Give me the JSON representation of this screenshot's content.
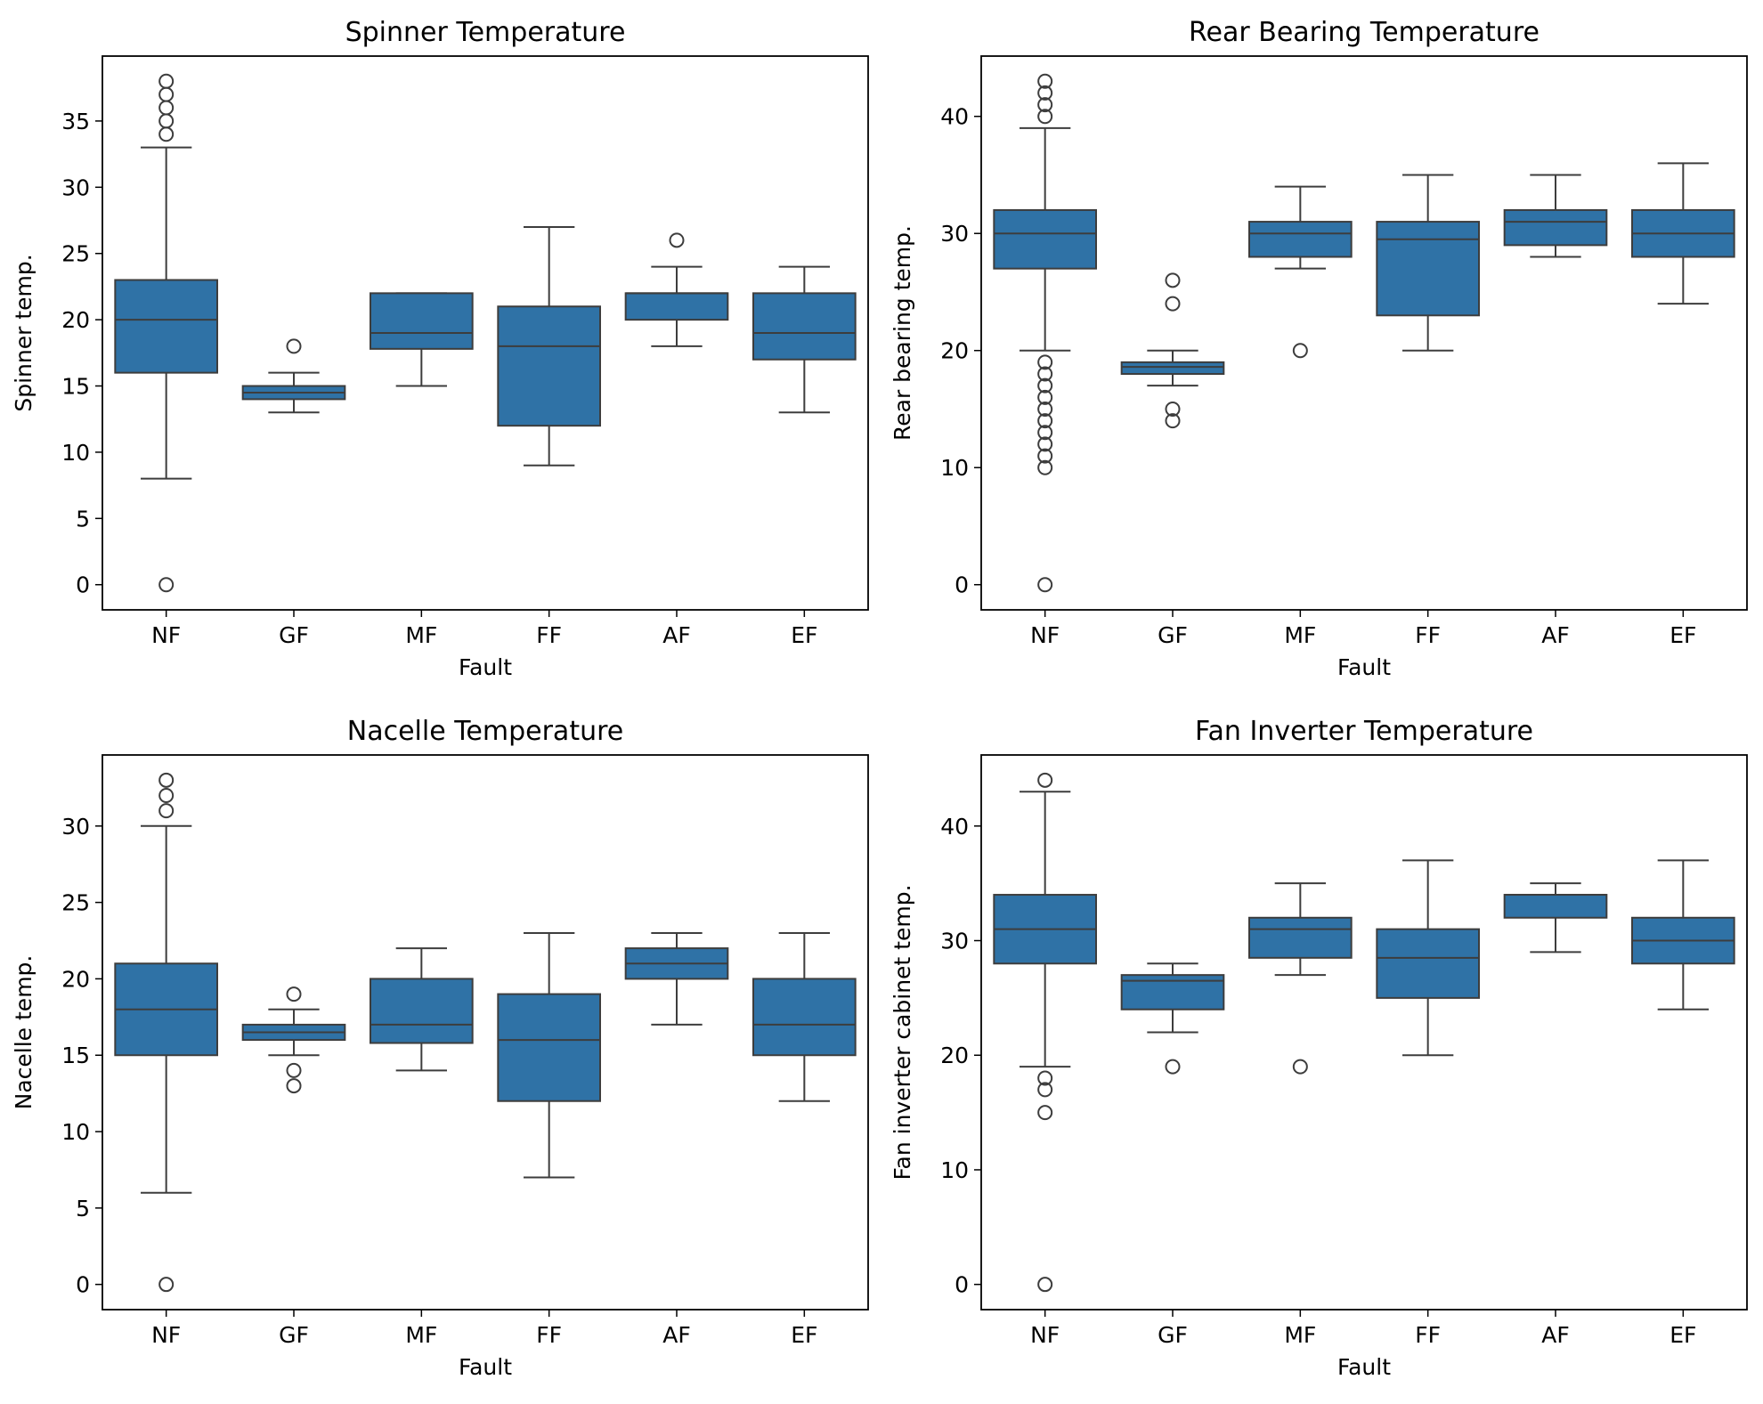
{
  "chart_data": [
    {
      "type": "box",
      "title": "Spinner Temperature",
      "xlabel": "Fault",
      "ylabel": "Spinner temp.",
      "categories": [
        "NF",
        "GF",
        "MF",
        "FF",
        "AF",
        "EF"
      ],
      "yticks": [
        0,
        5,
        10,
        15,
        20,
        25,
        30,
        35
      ],
      "ylim": [
        -1.9,
        39.9
      ],
      "color": "#2f72a6",
      "boxes": [
        {
          "category": "NF",
          "whislo": 8,
          "q1": 16,
          "med": 20,
          "q3": 23,
          "whishi": 33,
          "fliers": [
            0,
            34,
            35,
            36,
            37,
            38
          ]
        },
        {
          "category": "GF",
          "whislo": 13,
          "q1": 14,
          "med": 14.5,
          "q3": 15,
          "whishi": 16,
          "fliers": [
            18
          ]
        },
        {
          "category": "MF",
          "whislo": 15,
          "q1": 17.8,
          "med": 19,
          "q3": 22,
          "whishi": 22,
          "fliers": []
        },
        {
          "category": "FF",
          "whislo": 9,
          "q1": 12,
          "med": 18,
          "q3": 21,
          "whishi": 27,
          "fliers": []
        },
        {
          "category": "AF",
          "whislo": 18,
          "q1": 20,
          "med": 22,
          "q3": 22,
          "whishi": 24,
          "fliers": [
            26
          ]
        },
        {
          "category": "EF",
          "whislo": 13,
          "q1": 17,
          "med": 19,
          "q3": 22,
          "whishi": 24,
          "fliers": []
        }
      ]
    },
    {
      "type": "box",
      "title": "Rear Bearing Temperature",
      "xlabel": "Fault",
      "ylabel": "Rear bearing temp.",
      "categories": [
        "NF",
        "GF",
        "MF",
        "FF",
        "AF",
        "EF"
      ],
      "yticks": [
        0,
        10,
        20,
        30,
        40
      ],
      "ylim": [
        -2.15,
        45.15
      ],
      "color": "#2f72a6",
      "boxes": [
        {
          "category": "NF",
          "whislo": 20,
          "q1": 27,
          "med": 30,
          "q3": 32,
          "whishi": 39,
          "fliers": [
            0,
            10,
            11,
            12,
            13,
            14,
            15,
            16,
            17,
            18,
            19,
            40,
            41,
            42,
            43
          ]
        },
        {
          "category": "GF",
          "whislo": 17,
          "q1": 18,
          "med": 18.6,
          "q3": 19,
          "whishi": 20,
          "fliers": [
            14,
            15,
            24,
            26
          ]
        },
        {
          "category": "MF",
          "whislo": 27,
          "q1": 28,
          "med": 30,
          "q3": 31,
          "whishi": 34,
          "fliers": [
            20
          ]
        },
        {
          "category": "FF",
          "whislo": 20,
          "q1": 23,
          "med": 29.5,
          "q3": 31,
          "whishi": 35,
          "fliers": []
        },
        {
          "category": "AF",
          "whislo": 28,
          "q1": 29,
          "med": 31,
          "q3": 32,
          "whishi": 35,
          "fliers": []
        },
        {
          "category": "EF",
          "whislo": 24,
          "q1": 28,
          "med": 30,
          "q3": 32,
          "whishi": 36,
          "fliers": []
        }
      ]
    },
    {
      "type": "box",
      "title": "Nacelle Temperature",
      "xlabel": "Fault",
      "ylabel": "Nacelle temp.",
      "categories": [
        "NF",
        "GF",
        "MF",
        "FF",
        "AF",
        "EF"
      ],
      "yticks": [
        0,
        5,
        10,
        15,
        20,
        25,
        30
      ],
      "ylim": [
        -1.65,
        34.65
      ],
      "color": "#2f72a6",
      "boxes": [
        {
          "category": "NF",
          "whislo": 6,
          "q1": 15,
          "med": 18,
          "q3": 21,
          "whishi": 30,
          "fliers": [
            0,
            31,
            32,
            33
          ]
        },
        {
          "category": "GF",
          "whislo": 15,
          "q1": 16,
          "med": 16.5,
          "q3": 17,
          "whishi": 18,
          "fliers": [
            13,
            14,
            19
          ]
        },
        {
          "category": "MF",
          "whislo": 14,
          "q1": 15.8,
          "med": 17,
          "q3": 20,
          "whishi": 22,
          "fliers": []
        },
        {
          "category": "FF",
          "whislo": 7,
          "q1": 12,
          "med": 16,
          "q3": 19,
          "whishi": 23,
          "fliers": []
        },
        {
          "category": "AF",
          "whislo": 17,
          "q1": 20,
          "med": 21,
          "q3": 22,
          "whishi": 23,
          "fliers": []
        },
        {
          "category": "EF",
          "whislo": 12,
          "q1": 15,
          "med": 17,
          "q3": 20,
          "whishi": 23,
          "fliers": []
        }
      ]
    },
    {
      "type": "box",
      "title": "Fan Inverter Temperature",
      "xlabel": "Fault",
      "ylabel": "Fan inverter cabinet temp.",
      "categories": [
        "NF",
        "GF",
        "MF",
        "FF",
        "AF",
        "EF"
      ],
      "yticks": [
        0,
        10,
        20,
        30,
        40
      ],
      "ylim": [
        -2.2,
        46.2
      ],
      "color": "#2f72a6",
      "boxes": [
        {
          "category": "NF",
          "whislo": 19,
          "q1": 28,
          "med": 31,
          "q3": 34,
          "whishi": 43,
          "fliers": [
            0,
            15,
            17,
            18,
            44
          ]
        },
        {
          "category": "GF",
          "whislo": 22,
          "q1": 24,
          "med": 26.5,
          "q3": 27,
          "whishi": 28,
          "fliers": [
            19
          ]
        },
        {
          "category": "MF",
          "whislo": 27,
          "q1": 28.5,
          "med": 31,
          "q3": 32,
          "whishi": 35,
          "fliers": [
            19
          ]
        },
        {
          "category": "FF",
          "whislo": 20,
          "q1": 25,
          "med": 28.5,
          "q3": 31,
          "whishi": 37,
          "fliers": []
        },
        {
          "category": "AF",
          "whislo": 29,
          "q1": 32,
          "med": 34,
          "q3": 34,
          "whishi": 35,
          "fliers": []
        },
        {
          "category": "EF",
          "whislo": 24,
          "q1": 28,
          "med": 30,
          "q3": 32,
          "whishi": 37,
          "fliers": []
        }
      ]
    }
  ]
}
